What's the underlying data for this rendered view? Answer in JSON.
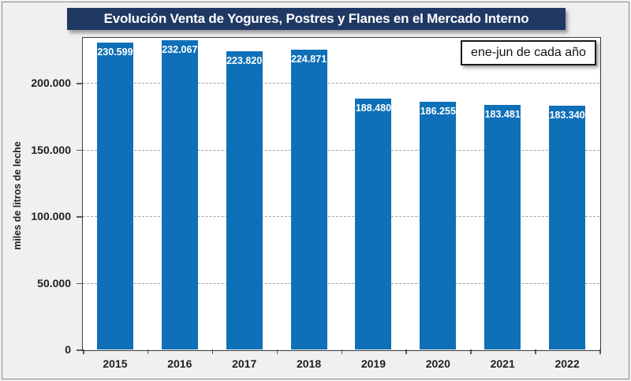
{
  "chart_data": {
    "type": "bar",
    "title": "Evolución Venta de Yogures, Postres y Flanes en el Mercado Interno",
    "legend": "ene-jun de cada año",
    "legend_position": "top-right",
    "ylabel": "miles de litros de leche",
    "xlabel": "",
    "categories": [
      "2015",
      "2016",
      "2017",
      "2018",
      "2019",
      "2020",
      "2021",
      "2022"
    ],
    "values": [
      230599,
      232067,
      223820,
      224871,
      188480,
      186255,
      183481,
      183340
    ],
    "value_labels": [
      "230.599",
      "232.067",
      "223.820",
      "224.871",
      "188.480",
      "186.255",
      "183.481",
      "183.340"
    ],
    "yticks": [
      {
        "value": 0,
        "label": "0"
      },
      {
        "value": 50000,
        "label": "50.000"
      },
      {
        "value": 100000,
        "label": "100.000"
      },
      {
        "value": 150000,
        "label": "150.000"
      },
      {
        "value": 200000,
        "label": "200.000"
      }
    ],
    "ylim": [
      0,
      234000
    ],
    "grid": "horizontal-dashed",
    "colors": {
      "bar": "#0F70B8",
      "title_bg": "#1F3864",
      "title_text": "#FFFFFF",
      "plot_bg": "#FFFFFF",
      "page_bg": "#F0F0F0"
    }
  }
}
